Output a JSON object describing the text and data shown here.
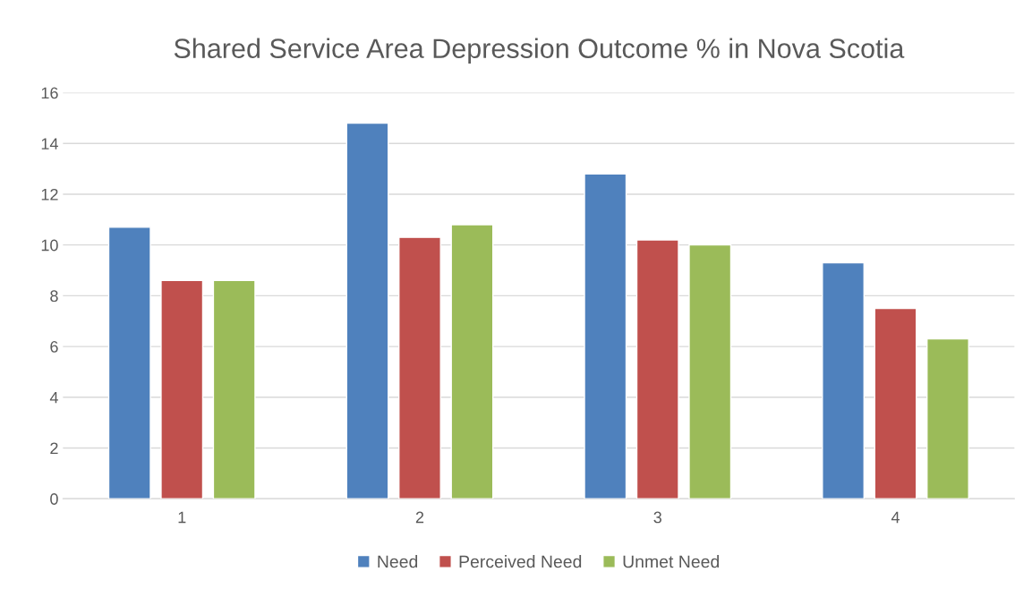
{
  "chart_data": {
    "type": "bar",
    "title": "Shared Service Area Depression Outcome % in Nova Scotia",
    "categories": [
      "1",
      "2",
      "3",
      "4"
    ],
    "series": [
      {
        "name": "Need",
        "color": "#4f81bd",
        "values": [
          10.7,
          14.8,
          12.8,
          9.3
        ]
      },
      {
        "name": "Perceived Need",
        "color": "#c0504d",
        "values": [
          8.6,
          10.3,
          10.2,
          7.5
        ]
      },
      {
        "name": "Unmet Need",
        "color": "#9bbb59",
        "values": [
          8.6,
          10.8,
          10.0,
          6.3
        ]
      }
    ],
    "ylim": [
      0,
      16
    ],
    "yticks": [
      0,
      2,
      4,
      6,
      8,
      10,
      12,
      14,
      16
    ],
    "grid": "y",
    "legend": "bottom"
  }
}
